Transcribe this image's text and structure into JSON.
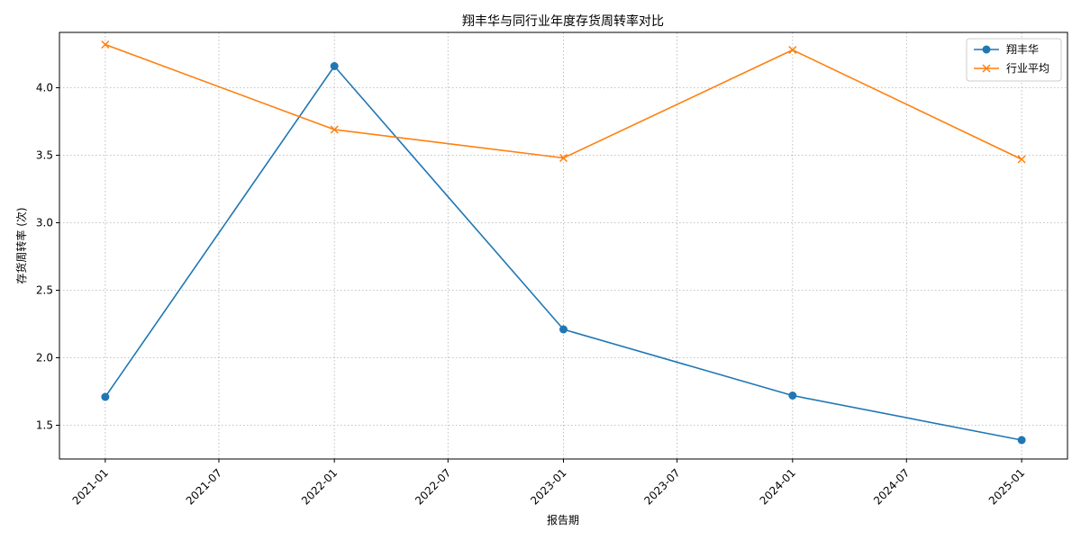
{
  "chart_data": {
    "type": "line",
    "title": "翔丰华与同行业年度存货周转率对比",
    "xlabel": "报告期",
    "ylabel": "存货周转率 (次)",
    "x": [
      "2021-01",
      "2022-01",
      "2023-01",
      "2024-01",
      "2025-01"
    ],
    "x_ticks": [
      "2021-01",
      "2021-07",
      "2022-01",
      "2022-07",
      "2023-01",
      "2023-07",
      "2024-01",
      "2024-07",
      "2025-01"
    ],
    "y_ticks": [
      1.5,
      2.0,
      2.5,
      3.0,
      3.5,
      4.0
    ],
    "ylim": [
      1.25,
      4.41
    ],
    "grid": true,
    "legend_position": "top-right",
    "series": [
      {
        "name": "翔丰华",
        "color": "#1f77b4",
        "marker": "circle",
        "values": [
          1.71,
          4.16,
          2.21,
          1.72,
          1.39
        ]
      },
      {
        "name": "行业平均",
        "color": "#ff7f0e",
        "marker": "x",
        "values": [
          4.32,
          3.69,
          3.48,
          4.28,
          3.47
        ]
      }
    ]
  }
}
